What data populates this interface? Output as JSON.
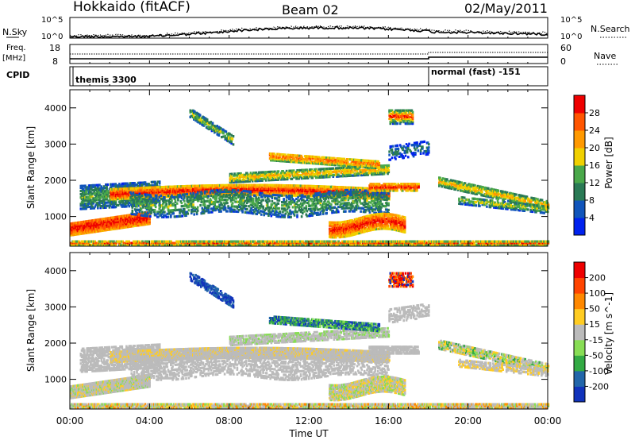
{
  "header": {
    "station": "Hokkaido (fitACF)",
    "beam": "Beam 02",
    "date": "02/May/2011"
  },
  "top_panel": {
    "left_label": "N.Sky",
    "right_label": "N.Search",
    "left_ticks": [
      "10^5",
      "10^0"
    ],
    "right_ticks": [
      "10^5",
      "10^0"
    ]
  },
  "freq_panel": {
    "left_label_1": "Freq.",
    "left_label_2": "[MHz]",
    "right_label": "Nave",
    "left_ticks": [
      "18",
      "8"
    ],
    "right_ticks": [
      "60",
      "0"
    ]
  },
  "cpid_panel": {
    "label": "CPID",
    "modes": [
      {
        "text": "themis 3300"
      },
      {
        "text": "normal (fast) -151"
      }
    ]
  },
  "chart_data": {
    "type": "heatmap",
    "xlabel": "Time UT",
    "x_ticks": [
      "00:00",
      "04:00",
      "08:00",
      "12:00",
      "16:00",
      "20:00",
      "00:00"
    ],
    "x_range_hours": [
      0,
      24
    ],
    "panels": [
      {
        "name": "power",
        "ylabel": "Slant Range [km]",
        "y_ticks": [
          1000,
          2000,
          3000,
          4000
        ],
        "ylim": [
          180,
          4500
        ],
        "colorbar_label": "Power [dB]",
        "colorbar_ticks": [
          "28",
          "24",
          "20",
          "16",
          "12",
          "8",
          "4"
        ],
        "colors": [
          "#0022ee",
          "#1155bb",
          "#2a7a55",
          "#4aa84a",
          "#f0d000",
          "#ff9900",
          "#ff5500",
          "#ee0000"
        ]
      },
      {
        "name": "velocity",
        "ylabel": "Slant Range [km]",
        "y_ticks": [
          1000,
          2000,
          3000,
          4000
        ],
        "ylim": [
          180,
          4500
        ],
        "colorbar_label": "Velocity [m s^-1]",
        "colorbar_ticks": [
          "200",
          "100",
          "50",
          "15",
          "-15",
          "-50",
          "-100",
          "-200"
        ],
        "colors": [
          "#1133bb",
          "#2266aa",
          "#33aa44",
          "#88dd55",
          "#bbbbbb",
          "#ffcc22",
          "#ff8800",
          "#ff4400",
          "#ee0000"
        ]
      }
    ]
  }
}
